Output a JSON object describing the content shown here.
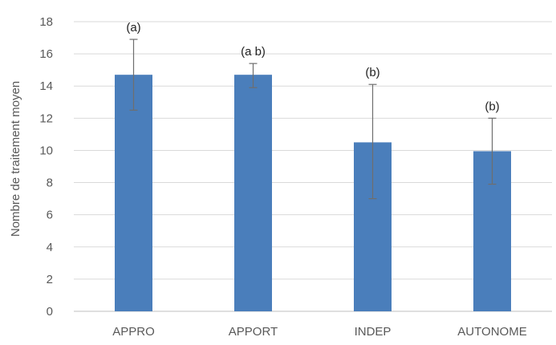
{
  "chart_data": {
    "type": "bar",
    "categories": [
      "APPRO",
      "APPORT",
      "INDEP",
      "AUTONOME"
    ],
    "values": [
      14.7,
      14.7,
      10.5,
      9.95
    ],
    "error_low": [
      12.5,
      13.9,
      7.0,
      7.9
    ],
    "error_high": [
      16.9,
      15.4,
      14.1,
      12.0
    ],
    "significance_labels": [
      "(a)",
      "(a b)",
      "(b)",
      "(b)"
    ],
    "ylabel": "Nombre de traitement moyen",
    "xlabel": "",
    "ylim": [
      0,
      18
    ],
    "yticks": [
      0,
      2,
      4,
      6,
      8,
      10,
      12,
      14,
      16,
      18
    ],
    "grid": true,
    "bar_color": "#4a7ebb",
    "error_bar_color": "#6e6e6e",
    "grid_color": "#d9d9d9"
  }
}
